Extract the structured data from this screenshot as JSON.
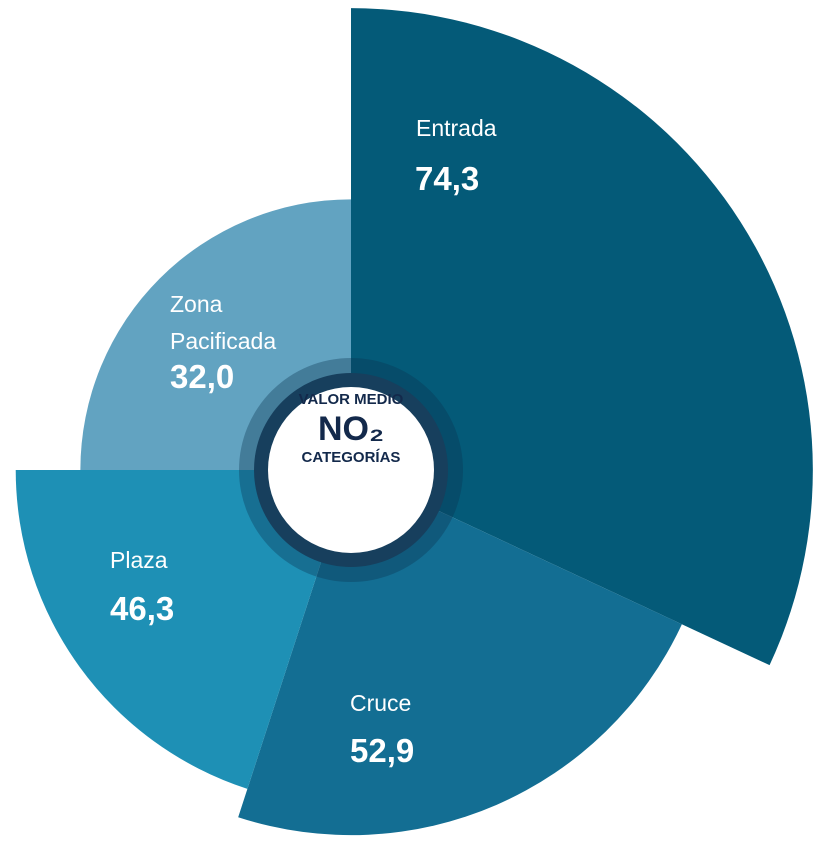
{
  "chart_data": {
    "type": "rose",
    "categories": [
      "Entrada",
      "Cruce",
      "Plaza",
      "Zona Pacificada"
    ],
    "values": [
      74.3,
      52.9,
      46.3,
      32.0
    ],
    "value_labels": [
      "74,3",
      "52,9",
      "46,3",
      "32,0"
    ],
    "colors": [
      "#045a78",
      "#136e93",
      "#1e90b5",
      "#62a3c1"
    ],
    "center_label": [
      "VALOR MEDIO",
      "NO₂",
      "CATEGORÍAS"
    ]
  }
}
